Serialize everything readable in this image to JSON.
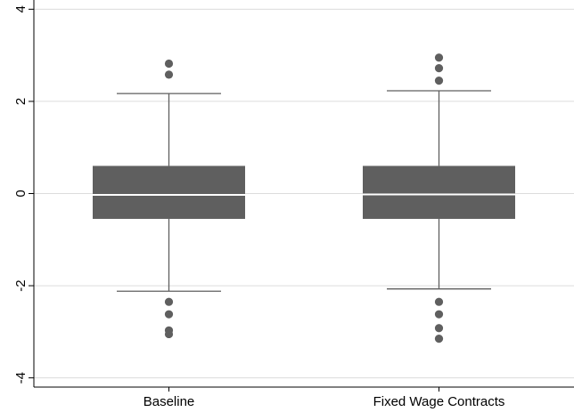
{
  "chart_data": {
    "type": "box",
    "title": "",
    "xlabel": "",
    "ylabel": "",
    "ylim": [
      -4.2,
      4.2
    ],
    "yticks": [
      -4,
      -2,
      0,
      2,
      4
    ],
    "ytick_labels": [
      "-4",
      "-2",
      "0",
      "2",
      "4"
    ],
    "grid": true,
    "legend": "none",
    "categories": [
      "Baseline",
      "Fixed Wage Contracts"
    ],
    "boxes": [
      {
        "category": "Baseline",
        "whisker_low": -2.12,
        "q1": -0.55,
        "median": -0.03,
        "q3": 0.6,
        "whisker_high": 2.17,
        "outliers": [
          2.82,
          2.58,
          -2.35,
          -2.62,
          -2.97,
          -3.05
        ]
      },
      {
        "category": "Fixed Wage Contracts",
        "whisker_low": -2.07,
        "q1": -0.55,
        "median": -0.02,
        "q3": 0.6,
        "whisker_high": 2.23,
        "outliers": [
          2.95,
          2.72,
          2.45,
          -2.35,
          -2.62,
          -2.92,
          -3.15
        ]
      }
    ],
    "colors": {
      "box_fill": "#5f5f5f",
      "median_line": "#ffffff",
      "whisker": "#5f5f5f",
      "outlier": "#5f5f5f",
      "gridline": "#dcdcdc",
      "axis": "#000000"
    }
  }
}
